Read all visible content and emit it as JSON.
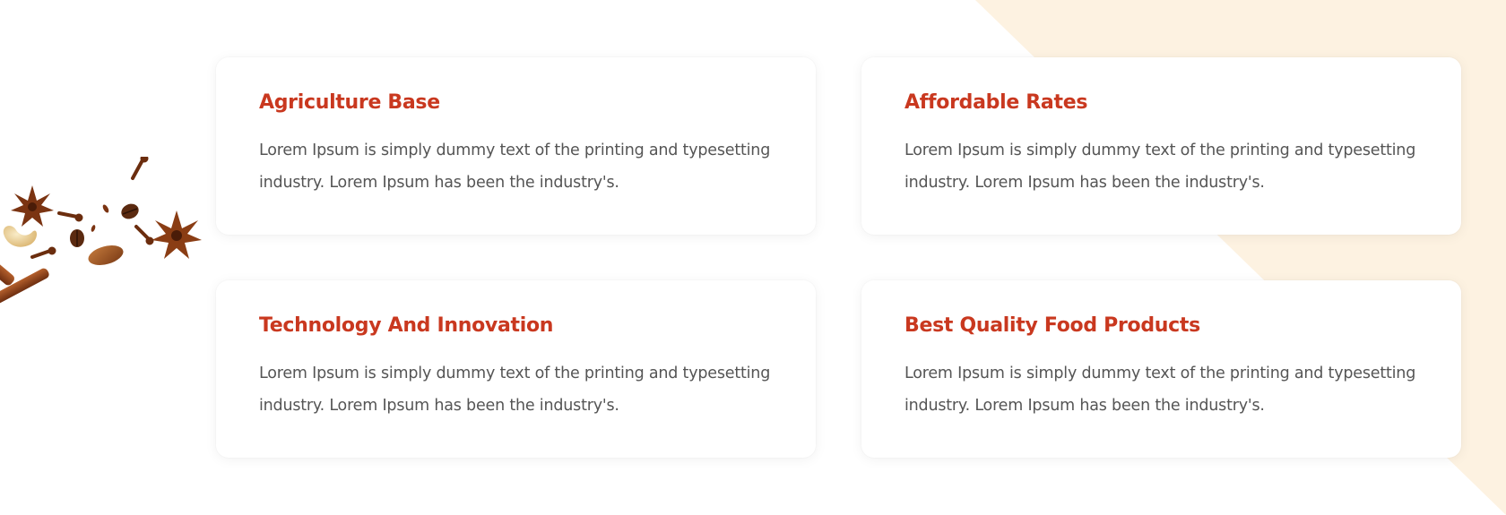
{
  "colors": {
    "accent": "#c9381f",
    "body_text": "#555555",
    "background_shape": "#fdf2e1",
    "card_background": "#ffffff"
  },
  "decoration": {
    "spices_image": "spices-illustration"
  },
  "features": [
    {
      "title": "Agriculture Base",
      "text": "Lorem Ipsum is simply dummy text of the printing and typesetting industry. Lorem Ipsum has been the industry's."
    },
    {
      "title": "Affordable Rates",
      "text": "Lorem Ipsum is simply dummy text of the printing and typesetting industry. Lorem Ipsum has been the industry's."
    },
    {
      "title": "Technology And Innovation",
      "text": "Lorem Ipsum is simply dummy text of the printing and typesetting industry. Lorem Ipsum has been the industry's."
    },
    {
      "title": "Best Quality Food Products",
      "text": "Lorem Ipsum is simply dummy text of the printing and typesetting industry. Lorem Ipsum has been the industry's."
    }
  ]
}
